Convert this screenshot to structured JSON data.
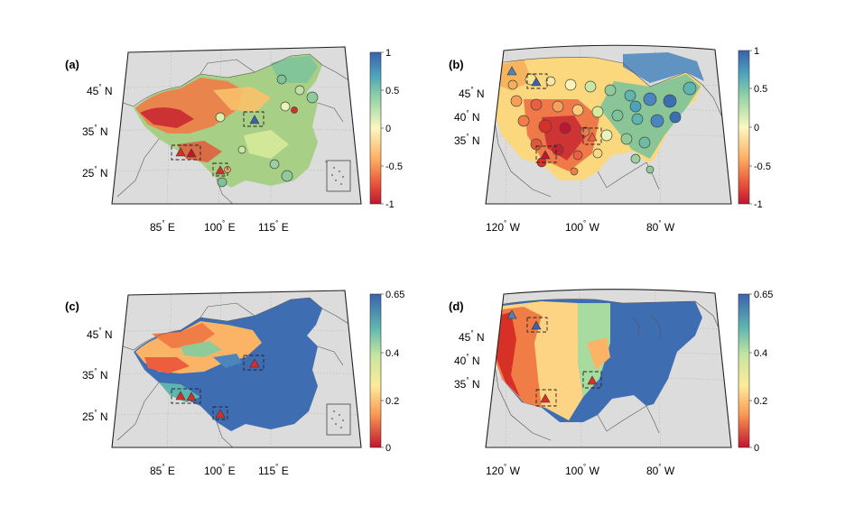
{
  "figure": {
    "panels": [
      {
        "id": "a",
        "label": "(a)",
        "region": "china",
        "lon_ticks": [
          "85",
          "100",
          "115"
        ],
        "lon_suffix": "E",
        "lat_ticks": [
          "45",
          "35",
          "25"
        ],
        "lat_suffix": "N",
        "colorbar": {
          "min": "-1",
          "max": "1",
          "ticks": [
            "1",
            "0.5",
            "0",
            "-0.5",
            "-1"
          ],
          "colormap": "diverging"
        }
      },
      {
        "id": "b",
        "label": "(b)",
        "region": "usa",
        "lon_ticks": [
          "120",
          "100",
          "80"
        ],
        "lon_suffix": "W",
        "lat_ticks": [
          "45",
          "40",
          "35"
        ],
        "lat_suffix": "N",
        "colorbar": {
          "min": "-1",
          "max": "1",
          "ticks": [
            "1",
            "0.5",
            "0",
            "-0.5",
            "-1"
          ],
          "colormap": "diverging"
        }
      },
      {
        "id": "c",
        "label": "(c)",
        "region": "china",
        "lon_ticks": [
          "85",
          "100",
          "115"
        ],
        "lon_suffix": "E",
        "lat_ticks": [
          "45",
          "35",
          "25"
        ],
        "lat_suffix": "N",
        "colorbar": {
          "min": "0",
          "max": "0.65",
          "ticks": [
            "0.65",
            "0.4",
            "0.2",
            "0"
          ],
          "colormap": "sequential"
        }
      },
      {
        "id": "d",
        "label": "(d)",
        "region": "usa",
        "lon_ticks": [
          "120",
          "100",
          "80"
        ],
        "lon_suffix": "W",
        "lat_ticks": [
          "45",
          "40",
          "35"
        ],
        "lat_suffix": "N",
        "colorbar": {
          "min": "0",
          "max": "0.65",
          "ticks": [
            "0.65",
            "0.4",
            "0.2",
            "0"
          ],
          "colormap": "sequential"
        }
      }
    ],
    "colors": {
      "land_background": "#dcdcdc",
      "border_line": "#555555",
      "frame": "#222222",
      "highlight_box": "#222222"
    }
  }
}
